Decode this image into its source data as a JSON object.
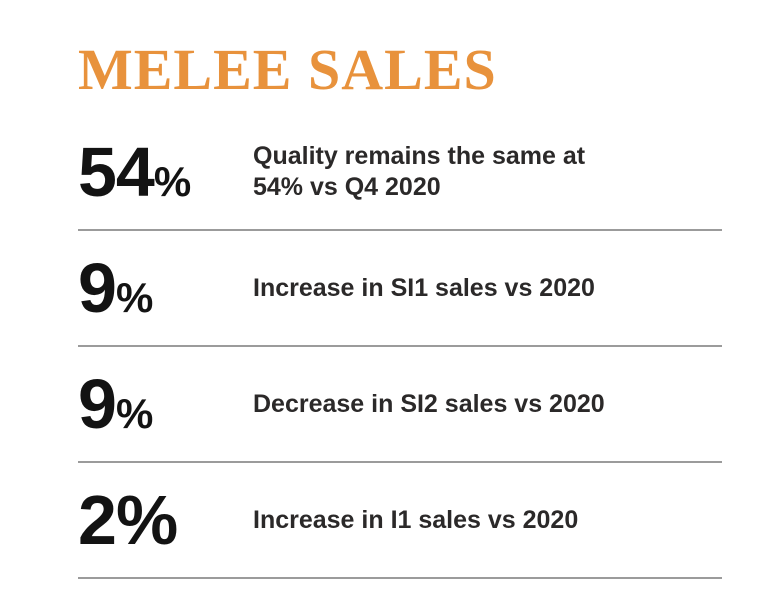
{
  "page": {
    "title": "MELEE SALES"
  },
  "colors": {
    "title_accent": "#E8923C",
    "stat_number": "#131313",
    "description_text": "#2b2929",
    "divider": "#9b9b9b"
  },
  "stats": [
    {
      "value": "54",
      "unit": "%",
      "unit_small": true,
      "description": "Quality remains the same at\n54% vs Q4 2020"
    },
    {
      "value": "9",
      "unit": "%",
      "unit_small": true,
      "description": "Increase in SI1 sales vs 2020"
    },
    {
      "value": "9",
      "unit": "%",
      "unit_small": true,
      "description": "Decrease in SI2 sales vs 2020"
    },
    {
      "value": "2",
      "unit": "%",
      "unit_small": false,
      "description": "Increase in I1 sales vs 2020"
    }
  ]
}
